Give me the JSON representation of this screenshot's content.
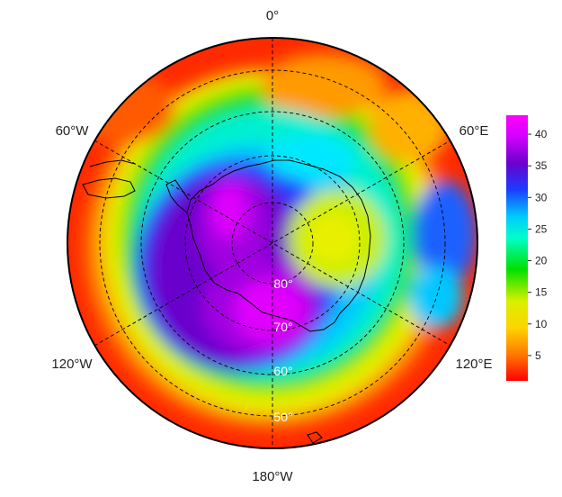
{
  "map": {
    "projection": "south-polar-stereographic",
    "longitude_labels": {
      "top": "0°",
      "upper_left": "60°W",
      "upper_right": "60°E",
      "lower_left": "120°W",
      "lower_right": "120°E",
      "bottom": "180°W"
    },
    "latitude_labels": [
      "80°",
      "70°",
      "60°",
      "50°"
    ],
    "colorbar": {
      "ticks": [
        "5",
        "10",
        "15",
        "20",
        "25",
        "30",
        "35",
        "40"
      ],
      "tick_values": [
        5,
        10,
        15,
        20,
        25,
        30,
        35,
        40
      ],
      "min": 1,
      "max": 43,
      "colors": [
        "#ff0000",
        "#ff7a00",
        "#ffd400",
        "#d8f000",
        "#00e000",
        "#00ffcc",
        "#00c8ff",
        "#1a3cff",
        "#6a00cc",
        "#d400ff",
        "#ff00ff"
      ]
    }
  }
}
